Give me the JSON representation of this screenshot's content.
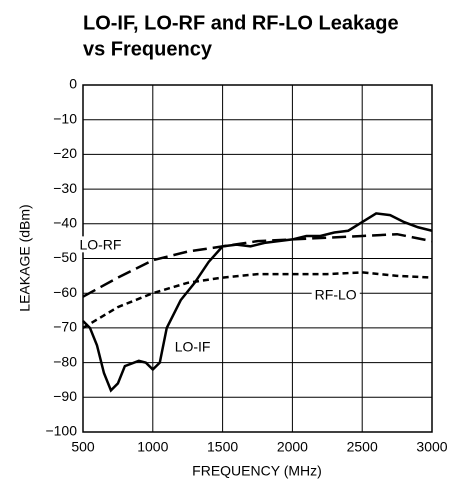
{
  "chart_data": {
    "type": "line",
    "title": [
      "LO-IF, LO-RF and RF-LO Leakage",
      "vs Frequency"
    ],
    "xlabel": "FREQUENCY (MHz)",
    "ylabel": "LEAKAGE (dBm)",
    "xlim": [
      500,
      3000
    ],
    "xticks": [
      500,
      1000,
      1500,
      2000,
      2500,
      3000
    ],
    "ylim": [
      -100,
      0
    ],
    "yticks": [
      {
        "value": -100,
        "label": "−100"
      },
      {
        "value": -90,
        "label": "−90"
      },
      {
        "value": -80,
        "label": "−80"
      },
      {
        "value": -70,
        "label": "−70"
      },
      {
        "value": -60,
        "label": "−60"
      },
      {
        "value": -50,
        "label": "−50"
      },
      {
        "value": -40,
        "label": "−40"
      },
      {
        "value": -30,
        "label": "−30"
      },
      {
        "value": -20,
        "label": "−20"
      },
      {
        "value": -10,
        "label": "−10"
      },
      0
    ],
    "grid": true,
    "series": [
      {
        "name": "LO-IF",
        "color": "#000000",
        "style": "solid",
        "x": [
          500,
          550,
          600,
          650,
          700,
          750,
          800,
          900,
          950,
          1000,
          1050,
          1100,
          1200,
          1300,
          1400,
          1500,
          1600,
          1700,
          1800,
          1900,
          2000,
          2100,
          2200,
          2300,
          2400,
          2500,
          2600,
          2700,
          2800,
          2900,
          3000
        ],
        "values": [
          -68,
          -70,
          -75,
          -83,
          -88,
          -86,
          -81,
          -79.5,
          -80,
          -82,
          -80,
          -70,
          -62,
          -57,
          -51,
          -46.5,
          -46,
          -46.5,
          -45.5,
          -45,
          -44.5,
          -43.5,
          -43.5,
          -42.5,
          -42,
          -39.5,
          -37,
          -37.5,
          -39.5,
          -41,
          -42
        ]
      },
      {
        "name": "LO-RF",
        "color": "#000000",
        "style": "long-dash",
        "x": [
          500,
          750,
          1000,
          1250,
          1500,
          1750,
          2000,
          2250,
          2500,
          2750,
          3000
        ],
        "values": [
          -61,
          -55.5,
          -50.5,
          -48,
          -46.5,
          -45,
          -44.5,
          -44,
          -43.5,
          -43,
          -45
        ]
      },
      {
        "name": "RF-LO",
        "color": "#000000",
        "style": "short-dash",
        "x": [
          500,
          750,
          1000,
          1250,
          1500,
          1750,
          2000,
          2250,
          2500,
          2750,
          3000
        ],
        "values": [
          -70,
          -64,
          -60,
          -57,
          -55.5,
          -54.5,
          -54.5,
          -54.5,
          -54,
          -55,
          -55.5
        ]
      }
    ]
  }
}
